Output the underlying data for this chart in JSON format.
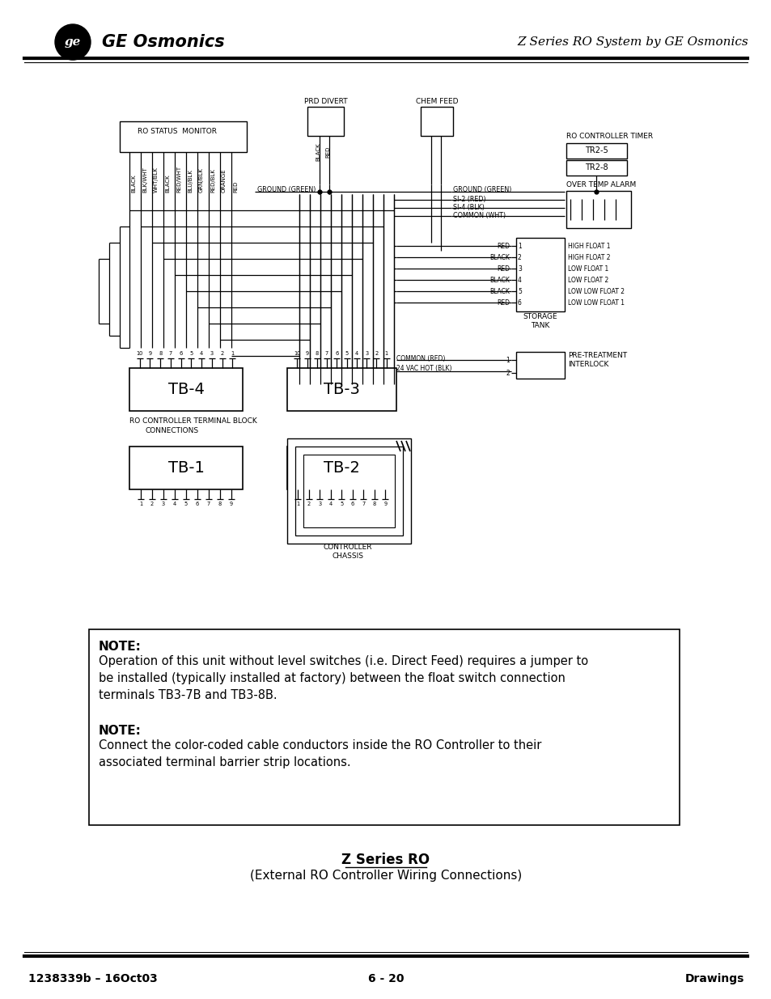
{
  "page_bg": "#ffffff",
  "header_title": "Z Series RO System by GE Osmonics",
  "footer_left": "1238339b – 16Oct03",
  "footer_center": "6 - 20",
  "footer_right": "Drawings",
  "caption_title": "Z Series RO",
  "caption_subtitle": "(External RO Controller Wiring Connections)",
  "note1_bold": "NOTE:",
  "note1_text": "Operation of this unit without level switches (i.e. Direct Feed) requires a jumper to\nbe installed (typically installed at factory) between the float switch connection\nterminals TB3-7B and TB3-8B.",
  "note2_bold": "NOTE:",
  "note2_text": "Connect the color-coded cable conductors inside the RO Controller to their\nassociated terminal barrier strip locations.",
  "color_labels_left": [
    "BLACK",
    "BLK/WHT",
    "WHT/BLK",
    "BLACK",
    "RED/WHT",
    "BLU/BLK",
    "GRN/BLK",
    "RED/BLK",
    "ORANGE",
    "RED"
  ],
  "float_labels": [
    "HIGH FLOAT 1",
    "HIGH FLOAT 2",
    "LOW FLOAT 1",
    "LOW FLOAT 2",
    "LOW LOW FLOAT 2",
    "LOW LOW FLOAT 1"
  ],
  "float_colors": [
    "RED",
    "BLACK",
    "RED",
    "BLACK",
    "BLACK",
    "RED"
  ],
  "float_nums": [
    "1",
    "2",
    "3",
    "4",
    "5",
    "6"
  ]
}
